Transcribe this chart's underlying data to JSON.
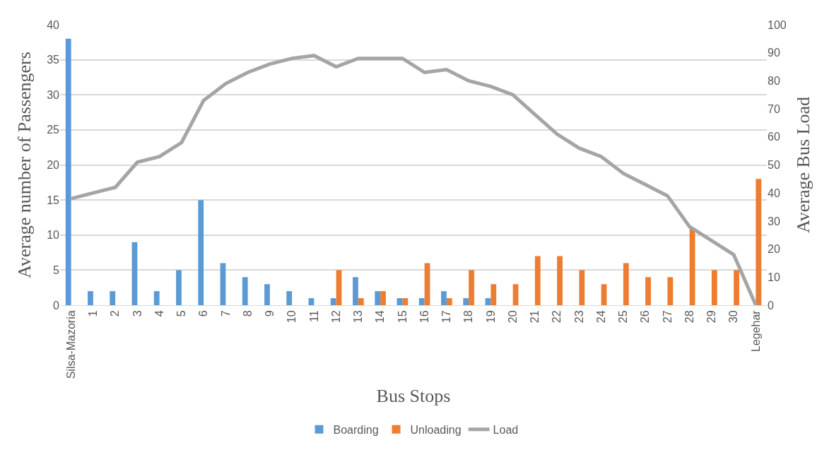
{
  "chart_data": {
    "type": "bar",
    "xlabel": "Bus Stops",
    "ylabel": "Average number of Passengers",
    "y2label": "Average Bus Load",
    "categories": [
      "Silsa-Mazoria",
      "1",
      "2",
      "3",
      "4",
      "5",
      "6",
      "7",
      "8",
      "9",
      "10",
      "11",
      "12",
      "13",
      "14",
      "15",
      "16",
      "17",
      "18",
      "19",
      "20",
      "21",
      "22",
      "23",
      "24",
      "25",
      "26",
      "27",
      "28",
      "29",
      "30",
      "Legehar"
    ],
    "series": [
      {
        "name": "Boarding",
        "color": "#5b9bd5",
        "values": [
          38,
          2,
          2,
          9,
          2,
          5,
          15,
          6,
          4,
          3,
          2,
          1,
          1,
          4,
          2,
          1,
          1,
          2,
          1,
          1,
          0,
          0,
          0,
          0,
          0,
          0,
          0,
          0,
          0,
          0,
          0,
          0
        ]
      },
      {
        "name": "Unloading",
        "color": "#ed7d31",
        "values": [
          0,
          0,
          0,
          0,
          0,
          0,
          0,
          0,
          0,
          0,
          0,
          0,
          5,
          1,
          2,
          1,
          6,
          1,
          5,
          3,
          3,
          7,
          7,
          5,
          3,
          6,
          4,
          4,
          11,
          5,
          5,
          18
        ]
      },
      {
        "name": "Load",
        "type": "line",
        "axis": "y2",
        "color": "#a5a5a5",
        "values": [
          38,
          40,
          42,
          51,
          53,
          58,
          73,
          79,
          83,
          86,
          88,
          89,
          85,
          88,
          88,
          88,
          83,
          84,
          80,
          78,
          75,
          68,
          61,
          56,
          53,
          47,
          43,
          39,
          28,
          23,
          18,
          0
        ]
      }
    ],
    "ylim": [
      0,
      40
    ],
    "yticks": [
      0,
      5,
      10,
      15,
      20,
      25,
      30,
      35,
      40
    ],
    "y2lim": [
      0,
      100
    ],
    "y2ticks": [
      0,
      10,
      20,
      30,
      40,
      50,
      60,
      70,
      80,
      90,
      100
    ],
    "grid": "y",
    "legend": "bottom",
    "marker": "none",
    "line_style": "solid"
  }
}
